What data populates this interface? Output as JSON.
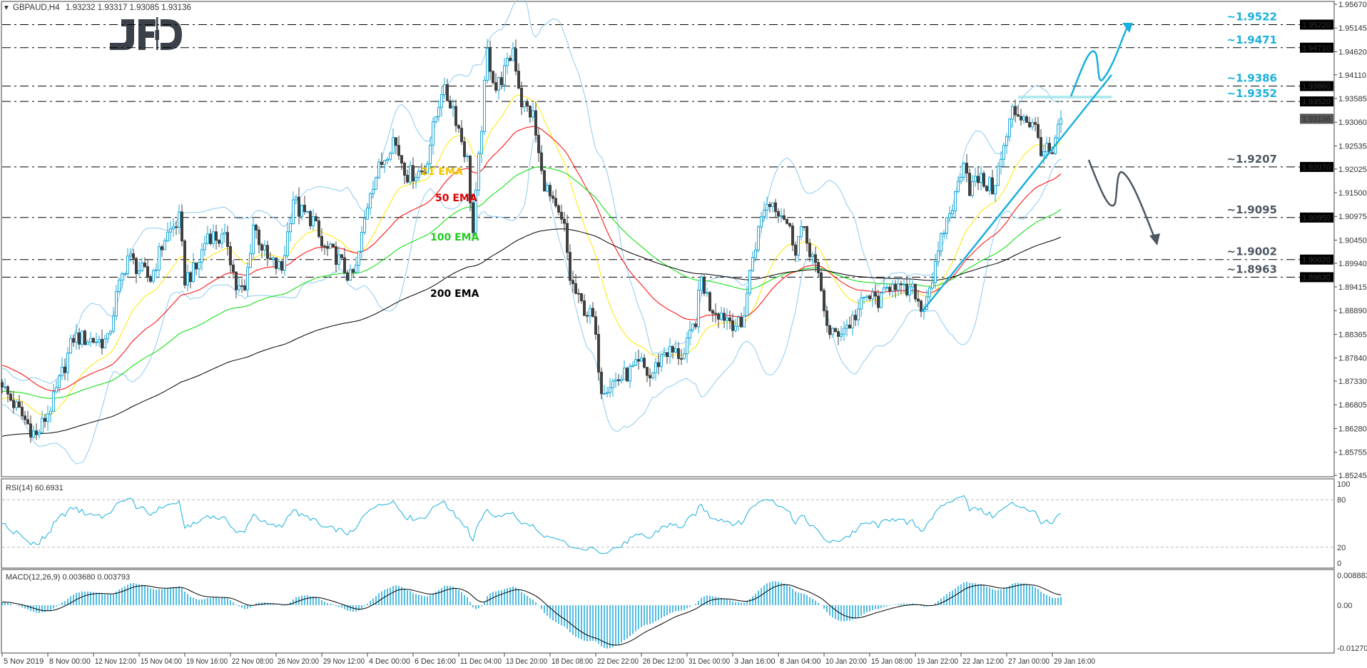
{
  "header": {
    "symbol": "GBPAUD,H4",
    "ohlc": "1.93232 1.93317 1.93085 1.93136"
  },
  "logo": "JFD",
  "colors": {
    "bull": "#1aa8d8",
    "bear": "#404040",
    "ema21": "#ffe600",
    "ema50": "#ff0000",
    "ema100": "#00dd00",
    "ema200": "#000000",
    "bands": "#8ccaf0",
    "level_up": "#1ab0dc",
    "level_down": "#4d5761",
    "rsi": "#1ab0dc",
    "macd_hist": "#1aa8d8"
  },
  "chart_data": {
    "type": "candlestick",
    "symbol": "GBPAUD",
    "timeframe": "H4",
    "ylim": [
      1.85245,
      1.9567
    ],
    "y_ticks": [
      "1.95670",
      "1.95145",
      "1.94620",
      "1.94110",
      "1.93585",
      "1.93060",
      "1.92535",
      "1.92025",
      "1.91500",
      "1.90975",
      "1.90450",
      "1.89940",
      "1.89415",
      "1.88890",
      "1.88365",
      "1.87840",
      "1.87330",
      "1.86805",
      "1.86280",
      "1.85755",
      "1.85245"
    ],
    "x_ticks": [
      "5 Nov 2019",
      "8 Nov 00:00",
      "12 Nov 12:00",
      "15 Nov 04:00",
      "19 Nov 16:00",
      "22 Nov 08:00",
      "26 Nov 20:00",
      "29 Nov 12:00",
      "4 Dec 00:00",
      "6 Dec 16:00",
      "11 Dec 04:00",
      "13 Dec 20:00",
      "18 Dec 08:00",
      "22 Dec 22:00",
      "26 Dec 12:00",
      "31 Dec 00:00",
      "3 Jan 16:00",
      "8 Jan 04:00",
      "10 Jan 20:00",
      "15 Jan 08:00",
      "19 Jan 22:00",
      "22 Jan 12:00",
      "27 Jan 00:00",
      "29 Jan 16:00"
    ],
    "bars_per_x_tick": 16,
    "key_closes": [
      [
        0,
        1.872
      ],
      [
        12,
        1.861
      ],
      [
        18,
        1.869
      ],
      [
        25,
        1.883
      ],
      [
        37,
        1.882
      ],
      [
        40,
        1.892
      ],
      [
        44,
        1.901
      ],
      [
        48,
        1.898
      ],
      [
        52,
        1.896
      ],
      [
        57,
        1.905
      ],
      [
        62,
        1.909
      ],
      [
        64,
        1.896
      ],
      [
        68,
        1.898
      ],
      [
        72,
        1.906
      ],
      [
        79,
        1.904
      ],
      [
        82,
        1.894
      ],
      [
        85,
        1.893
      ],
      [
        88,
        1.908
      ],
      [
        93,
        1.9
      ],
      [
        98,
        1.898
      ],
      [
        102,
        1.914
      ],
      [
        104,
        1.911
      ],
      [
        109,
        1.909
      ],
      [
        112,
        1.903
      ],
      [
        117,
        1.901
      ],
      [
        122,
        1.896
      ],
      [
        124,
        1.898
      ],
      [
        129,
        1.916
      ],
      [
        134,
        1.923
      ],
      [
        137,
        1.927
      ],
      [
        142,
        1.919
      ],
      [
        148,
        1.92
      ],
      [
        154,
        1.938
      ],
      [
        158,
        1.934
      ],
      [
        163,
        1.922
      ],
      [
        165,
        1.906
      ],
      [
        170,
        1.946
      ],
      [
        173,
        1.938
      ],
      [
        177,
        1.943
      ],
      [
        179,
        1.947
      ],
      [
        182,
        1.935
      ],
      [
        186,
        1.932
      ],
      [
        189,
        1.919
      ],
      [
        193,
        1.912
      ],
      [
        197,
        1.907
      ],
      [
        199,
        1.896
      ],
      [
        202,
        1.891
      ],
      [
        207,
        1.887
      ],
      [
        210,
        1.872
      ],
      [
        217,
        1.874
      ],
      [
        224,
        1.877
      ],
      [
        227,
        1.874
      ],
      [
        232,
        1.88
      ],
      [
        239,
        1.879
      ],
      [
        243,
        1.887
      ],
      [
        245,
        1.896
      ],
      [
        248,
        1.89
      ],
      [
        255,
        1.887
      ],
      [
        259,
        1.885
      ],
      [
        263,
        1.901
      ],
      [
        267,
        1.912
      ],
      [
        270,
        1.913
      ],
      [
        274,
        1.91
      ],
      [
        278,
        1.903
      ],
      [
        280,
        1.907
      ],
      [
        284,
        1.901
      ],
      [
        287,
        1.893
      ],
      [
        290,
        1.883
      ],
      [
        297,
        1.886
      ],
      [
        303,
        1.892
      ],
      [
        308,
        1.891
      ],
      [
        312,
        1.896
      ],
      [
        315,
        1.893
      ],
      [
        320,
        1.893
      ],
      [
        322,
        1.889
      ],
      [
        327,
        1.898
      ],
      [
        330,
        1.907
      ],
      [
        334,
        1.914
      ],
      [
        337,
        1.923
      ],
      [
        339,
        1.916
      ],
      [
        342,
        1.918
      ],
      [
        347,
        1.916
      ],
      [
        350,
        1.922
      ],
      [
        354,
        1.933
      ],
      [
        358,
        1.932
      ],
      [
        362,
        1.929
      ],
      [
        364,
        1.925
      ],
      [
        368,
        1.923
      ],
      [
        371,
        1.93136
      ]
    ],
    "last_price": "1.93136",
    "ema_start": {
      "ema21": 1.869,
      "ema50": 1.877,
      "ema100": 1.871,
      "ema200": 1.861
    },
    "ema_labels": [
      "21 EMA",
      "50 EMA",
      "100 EMA",
      "200 EMA"
    ],
    "levels": [
      {
        "value": 1.9522,
        "label": "~1.9522",
        "tag": "1.95220",
        "side": "up"
      },
      {
        "value": 1.9471,
        "label": "~1.9471",
        "tag": "1.94710",
        "side": "up"
      },
      {
        "value": 1.9386,
        "label": "~1.9386",
        "tag": "1.93860",
        "side": "up"
      },
      {
        "value": 1.9352,
        "label": "~1.9352",
        "tag": "1.93520",
        "side": "up"
      },
      {
        "value": 1.9207,
        "label": "~1.9207",
        "tag": "1.92070",
        "side": "down"
      },
      {
        "value": 1.9095,
        "label": "~1.9095",
        "tag": "1.90950",
        "side": "down"
      },
      {
        "value": 1.9002,
        "label": "~1.9002",
        "tag": "1.90020",
        "side": "down"
      },
      {
        "value": 1.8963,
        "label": "~1.8963",
        "tag": "1.89630",
        "side": "down"
      }
    ],
    "rsi": {
      "label": "RSI(14) 60.6931",
      "ticks": [
        "100",
        "80",
        "20",
        "0"
      ],
      "levels": [
        80,
        20
      ]
    },
    "macd": {
      "label": "MACD(12,26,9) 0.003680 0.003793",
      "ticks": [
        "0.008883",
        "0.00",
        "-0.012707"
      ],
      "ylim": [
        -0.012707,
        0.008883
      ]
    }
  }
}
